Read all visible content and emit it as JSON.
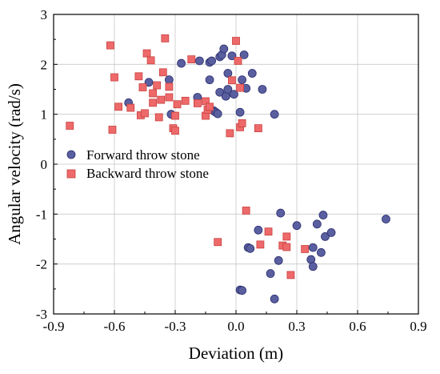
{
  "chart_data": {
    "type": "scatter",
    "title": "",
    "xlabel": "Deviation (m)",
    "ylabel": "Angular velocity (rad/s)",
    "xlim": [
      -0.9,
      0.9
    ],
    "ylim": [
      -3,
      3
    ],
    "xticks": [
      "-0.9",
      "-0.6",
      "-0.3",
      "0.0",
      "0.3",
      "0.6",
      "0.9"
    ],
    "yticks": [
      "-3",
      "-2",
      "-1",
      "0",
      "1",
      "2",
      "3"
    ],
    "grid": true,
    "legend_position": "center-left",
    "series": [
      {
        "name": "Forward throw stone",
        "marker": "circle",
        "color": "#5a5fa0",
        "edge": "#2b2e6e",
        "points": [
          [
            -0.53,
            1.23
          ],
          [
            -0.43,
            1.64
          ],
          [
            -0.33,
            1.69
          ],
          [
            -0.32,
            1.0
          ],
          [
            -0.27,
            2.02
          ],
          [
            -0.19,
            1.34
          ],
          [
            -0.18,
            2.07
          ],
          [
            -0.13,
            2.04
          ],
          [
            -0.13,
            1.69
          ],
          [
            -0.12,
            2.07
          ],
          [
            -0.11,
            1.07
          ],
          [
            -0.1,
            1.04
          ],
          [
            -0.09,
            1.01
          ],
          [
            -0.08,
            1.44
          ],
          [
            -0.08,
            2.15
          ],
          [
            -0.07,
            2.19
          ],
          [
            -0.06,
            2.31
          ],
          [
            -0.05,
            1.36
          ],
          [
            -0.04,
            1.5
          ],
          [
            -0.04,
            1.82
          ],
          [
            -0.02,
            2.17
          ],
          [
            -0.01,
            1.4
          ],
          [
            0.02,
            1.04
          ],
          [
            0.03,
            1.69
          ],
          [
            0.04,
            2.19
          ],
          [
            0.05,
            1.52
          ],
          [
            0.08,
            1.82
          ],
          [
            0.13,
            1.5
          ],
          [
            0.19,
            1.0
          ],
          [
            0.06,
            -1.67
          ],
          [
            0.07,
            -1.69
          ],
          [
            0.02,
            -2.52
          ],
          [
            0.03,
            -2.53
          ],
          [
            0.11,
            -1.32
          ],
          [
            0.17,
            -2.19
          ],
          [
            0.19,
            -2.7
          ],
          [
            0.21,
            -1.93
          ],
          [
            0.22,
            -0.98
          ],
          [
            0.3,
            -1.23
          ],
          [
            0.37,
            -1.91
          ],
          [
            0.38,
            -2.05
          ],
          [
            0.38,
            -1.67
          ],
          [
            0.4,
            -1.2
          ],
          [
            0.42,
            -1.77
          ],
          [
            0.43,
            -1.02
          ],
          [
            0.44,
            -1.45
          ],
          [
            0.47,
            -1.37
          ],
          [
            0.74,
            -1.1
          ]
        ]
      },
      {
        "name": "Backward throw stone",
        "marker": "square",
        "color": "#ee6a6a",
        "edge": "#c94040",
        "points": [
          [
            -0.82,
            0.77
          ],
          [
            -0.62,
            2.38
          ],
          [
            -0.61,
            0.69
          ],
          [
            -0.6,
            1.74
          ],
          [
            -0.58,
            1.15
          ],
          [
            -0.52,
            1.13
          ],
          [
            -0.48,
            1.76
          ],
          [
            -0.47,
            0.98
          ],
          [
            -0.46,
            1.54
          ],
          [
            -0.45,
            1.02
          ],
          [
            -0.44,
            2.22
          ],
          [
            -0.42,
            2.08
          ],
          [
            -0.41,
            1.42
          ],
          [
            -0.41,
            1.23
          ],
          [
            -0.39,
            1.58
          ],
          [
            -0.38,
            0.94
          ],
          [
            -0.37,
            1.29
          ],
          [
            -0.36,
            1.84
          ],
          [
            -0.35,
            2.52
          ],
          [
            -0.33,
            1.55
          ],
          [
            -0.33,
            1.34
          ],
          [
            -0.31,
            0.72
          ],
          [
            -0.3,
            0.97
          ],
          [
            -0.3,
            0.67
          ],
          [
            -0.29,
            1.2
          ],
          [
            -0.25,
            1.27
          ],
          [
            -0.22,
            2.1
          ],
          [
            -0.19,
            1.22
          ],
          [
            -0.15,
            1.26
          ],
          [
            -0.15,
            0.97
          ],
          [
            -0.14,
            1.09
          ],
          [
            -0.13,
            1.15
          ],
          [
            -0.03,
            0.62
          ],
          [
            -0.02,
            1.68
          ],
          [
            0.0,
            2.47
          ],
          [
            0.01,
            2.07
          ],
          [
            0.02,
            1.53
          ],
          [
            0.02,
            0.74
          ],
          [
            0.03,
            0.82
          ],
          [
            0.11,
            0.72
          ],
          [
            0.05,
            -0.93
          ],
          [
            0.12,
            -1.61
          ],
          [
            0.16,
            -1.35
          ],
          [
            0.23,
            -1.63
          ],
          [
            0.25,
            -1.45
          ],
          [
            0.25,
            -1.66
          ],
          [
            0.27,
            -2.22
          ],
          [
            0.34,
            -1.7
          ],
          [
            -0.09,
            -1.56
          ]
        ]
      }
    ]
  }
}
